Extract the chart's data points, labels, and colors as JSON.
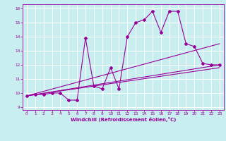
{
  "xlabel": "Windchill (Refroidissement éolien,°C)",
  "bg_color": "#c8eef0",
  "grid_color": "#ffffff",
  "line_color": "#990099",
  "xlim": [
    -0.5,
    23.5
  ],
  "ylim": [
    8.8,
    16.3
  ],
  "xticks": [
    0,
    1,
    2,
    3,
    4,
    5,
    6,
    7,
    8,
    9,
    10,
    11,
    12,
    13,
    14,
    15,
    16,
    17,
    18,
    19,
    20,
    21,
    22,
    23
  ],
  "yticks": [
    9,
    10,
    11,
    12,
    13,
    14,
    15,
    16
  ],
  "series1_x": [
    0,
    1,
    2,
    3,
    4,
    5,
    6,
    7,
    8,
    9,
    10,
    11,
    12,
    13,
    14,
    15,
    16,
    17,
    18,
    19,
    20,
    21,
    22,
    23
  ],
  "series1_y": [
    9.8,
    9.9,
    9.9,
    10.0,
    10.0,
    9.5,
    9.5,
    13.9,
    10.5,
    10.3,
    11.8,
    10.3,
    14.0,
    15.0,
    15.2,
    15.8,
    14.3,
    15.8,
    15.8,
    13.5,
    13.3,
    12.1,
    12.0,
    12.0
  ],
  "series2_x": [
    0,
    23
  ],
  "series2_y": [
    9.8,
    12.0
  ],
  "series3_x": [
    0,
    23
  ],
  "series3_y": [
    9.8,
    13.5
  ],
  "series4_x": [
    0,
    23
  ],
  "series4_y": [
    9.8,
    11.8
  ]
}
